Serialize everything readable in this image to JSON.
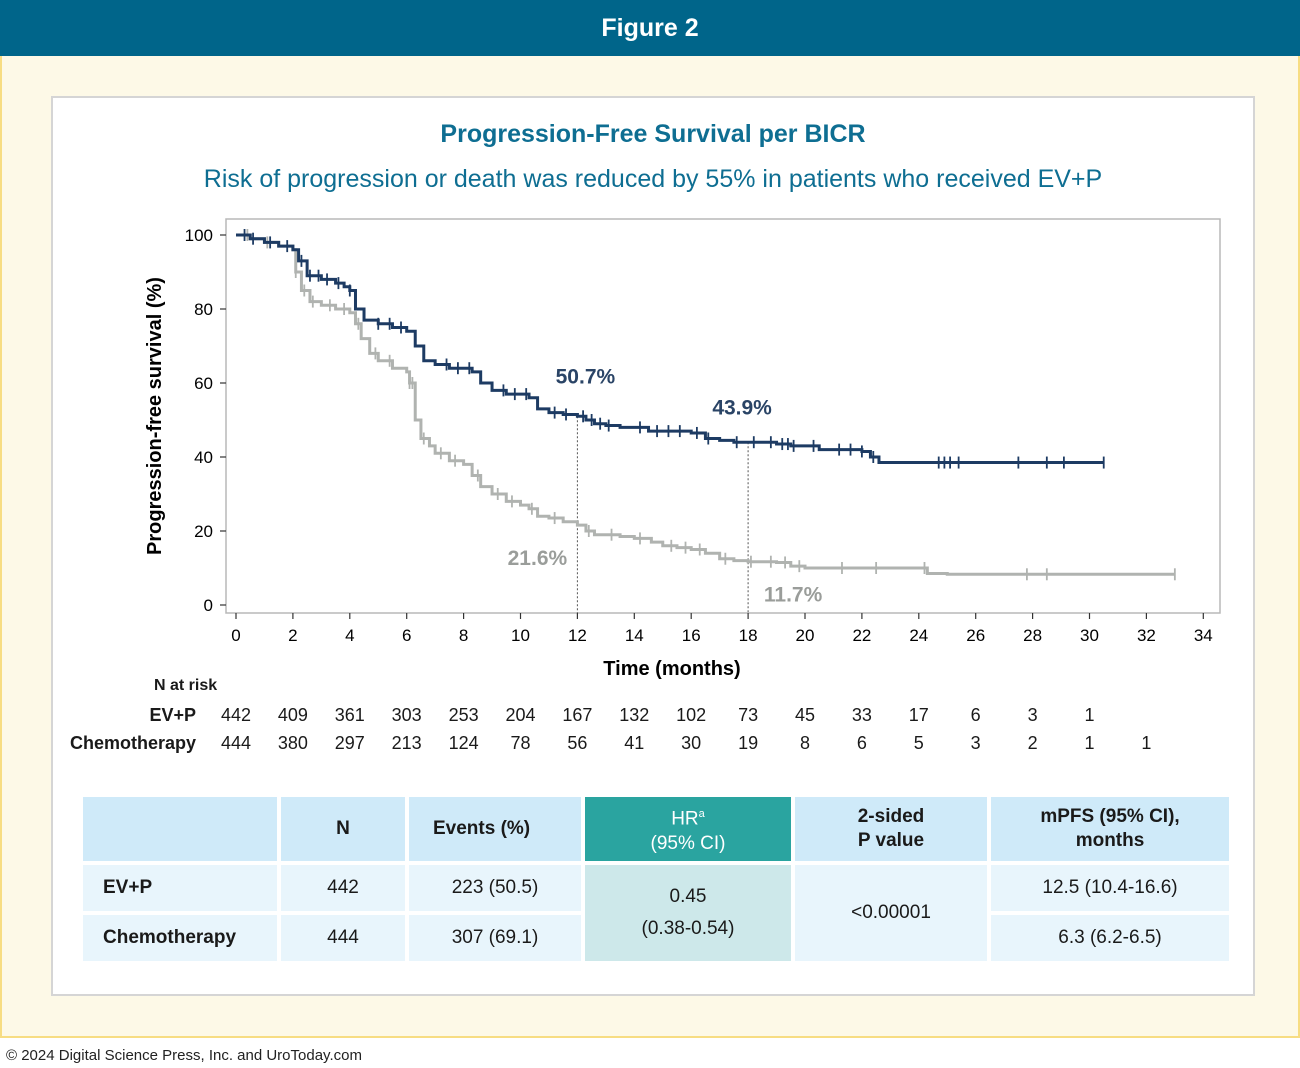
{
  "header": {
    "title": "Figure 2"
  },
  "chart_header": {
    "title": "Progression-Free Survival per BICR",
    "subtitle": "Risk of progression or death was reduced by 55% in patients who received EV+P"
  },
  "chart_data": {
    "type": "line",
    "xlabel": "Time (months)",
    "ylabel": "Progression-free survival (%)",
    "xlim": [
      0,
      34
    ],
    "ylim": [
      0,
      100
    ],
    "xticks": [
      0,
      2,
      4,
      6,
      8,
      10,
      12,
      14,
      16,
      18,
      20,
      22,
      24,
      26,
      28,
      30,
      32,
      34
    ],
    "yticks": [
      0,
      20,
      40,
      60,
      80,
      100
    ],
    "series": [
      {
        "name": "EV+P",
        "color": "#1d3b63",
        "x": [
          0,
          0.5,
          1.0,
          1.5,
          2.0,
          2.2,
          2.5,
          3.0,
          3.5,
          3.8,
          4.0,
          4.2,
          4.5,
          5.0,
          5.5,
          6.0,
          6.3,
          6.6,
          7.0,
          7.5,
          8.0,
          8.3,
          8.6,
          9.0,
          9.5,
          10.0,
          10.3,
          10.6,
          11.0,
          11.5,
          12.0,
          12.3,
          12.6,
          13.0,
          13.5,
          14.0,
          14.5,
          15.0,
          15.5,
          16.0,
          16.5,
          17.0,
          17.5,
          18.0,
          18.5,
          19.0,
          19.5,
          20.0,
          20.5,
          21.0,
          21.5,
          22.0,
          22.3,
          22.6,
          23.0,
          24.0,
          25.0,
          26.0,
          27.0,
          28.0,
          29.0,
          30.0,
          30.5
        ],
        "y": [
          100,
          99,
          98,
          97,
          96,
          93,
          89,
          88,
          87,
          86,
          85,
          80,
          77,
          76,
          75,
          74,
          70,
          66,
          65,
          64,
          64,
          63,
          60,
          58,
          57,
          57,
          56,
          53,
          52,
          51.5,
          51,
          50,
          49,
          48.5,
          48,
          48,
          47,
          47,
          47,
          46.5,
          45,
          44.5,
          44,
          44,
          44,
          43.5,
          43,
          43,
          42,
          42,
          42,
          41.5,
          40,
          38.5,
          38.5,
          38.5,
          38.5,
          38.5,
          38.5,
          38.5,
          38.5,
          38.5,
          38.5
        ],
        "censor_x": [
          0.3,
          0.6,
          1.2,
          1.8,
          2.3,
          2.6,
          2.9,
          3.2,
          3.6,
          4.0,
          5.0,
          5.4,
          5.8,
          7.4,
          7.8,
          8.2,
          9.4,
          9.8,
          10.2,
          11.2,
          11.6,
          12.2,
          12.5,
          12.8,
          13.1,
          14.2,
          14.8,
          15.2,
          15.6,
          16.2,
          16.6,
          17.6,
          18.2,
          18.8,
          19.2,
          19.4,
          19.6,
          20.3,
          21.2,
          21.6,
          22.0,
          22.4,
          24.7,
          24.9,
          25.1,
          25.4,
          27.5,
          28.5,
          29.1,
          30.5
        ],
        "annotations": [
          {
            "x": 12,
            "y": 50.7,
            "text": "50.7%"
          },
          {
            "x": 18,
            "y": 43.9,
            "text": "43.9%"
          }
        ]
      },
      {
        "name": "Chemotherapy",
        "color": "#b0b3b0",
        "x": [
          0,
          0.5,
          1.0,
          1.5,
          2.0,
          2.1,
          2.3,
          2.6,
          3.0,
          3.5,
          4.0,
          4.2,
          4.4,
          4.7,
          5.0,
          5.5,
          6.0,
          6.1,
          6.3,
          6.5,
          6.8,
          7.0,
          7.5,
          8.0,
          8.3,
          8.6,
          9.0,
          9.5,
          10.0,
          10.3,
          10.6,
          11.0,
          11.5,
          12.0,
          12.3,
          12.6,
          13.0,
          13.5,
          14.0,
          14.3,
          14.6,
          15.0,
          15.5,
          16.0,
          16.5,
          17.0,
          17.5,
          18.0,
          18.5,
          19.0,
          19.5,
          20.0,
          21.0,
          22.0,
          23.0,
          24.0,
          24.3,
          25.0,
          26.0,
          27.0,
          28.0,
          29.0,
          30.0,
          31.0,
          32.0,
          33.0
        ],
        "y": [
          100,
          99,
          98,
          97,
          96,
          90,
          85,
          82,
          81,
          80,
          79,
          76,
          72,
          68,
          66,
          64,
          63,
          60,
          50,
          45,
          43,
          41,
          39,
          38,
          35,
          32,
          30,
          28,
          27,
          26,
          24,
          23.5,
          22.5,
          21.6,
          20,
          19,
          19,
          18.5,
          18,
          18,
          17,
          16,
          15.5,
          15,
          14,
          12.5,
          12,
          11.7,
          11.7,
          11.5,
          10.5,
          10,
          10,
          10,
          10,
          10,
          8.5,
          8.3,
          8.3,
          8.3,
          8.3,
          8.3,
          8.3,
          8.3,
          8.3,
          8.3
        ],
        "censor_x": [
          0.4,
          1.1,
          2.1,
          2.4,
          2.7,
          3.3,
          3.8,
          4.3,
          4.9,
          5.4,
          6.1,
          6.2,
          6.6,
          7.2,
          7.7,
          8.5,
          9.2,
          9.7,
          10.4,
          11.2,
          12.4,
          13.2,
          14.2,
          15.3,
          15.8,
          16.3,
          17.2,
          18.1,
          18.8,
          19.3,
          19.8,
          21.3,
          22.5,
          24.2,
          27.8,
          28.5,
          33.0
        ],
        "annotations": [
          {
            "x": 12,
            "y": 21.6,
            "text": "21.6%"
          },
          {
            "x": 18,
            "y": 11.7,
            "text": "11.7%"
          }
        ]
      }
    ],
    "reference_lines_x": [
      12,
      18
    ]
  },
  "risk_table": {
    "header": "N at risk",
    "times": [
      0,
      2,
      4,
      6,
      8,
      10,
      12,
      14,
      16,
      18,
      20,
      22,
      24,
      26,
      28,
      30,
      32
    ],
    "rows": [
      {
        "label": "EV+P",
        "values": [
          "442",
          "409",
          "361",
          "303",
          "253",
          "204",
          "167",
          "132",
          "102",
          "73",
          "45",
          "33",
          "17",
          "6",
          "3",
          "1",
          ""
        ]
      },
      {
        "label": "Chemotherapy",
        "values": [
          "444",
          "380",
          "297",
          "213",
          "124",
          "78",
          "56",
          "41",
          "30",
          "19",
          "8",
          "6",
          "5",
          "3",
          "2",
          "1",
          "1"
        ]
      }
    ]
  },
  "summary_table": {
    "headers": {
      "n": "N",
      "events": "Events (%)",
      "hr": "HR",
      "hr_sup": "a",
      "hr_ci": "(95% CI)",
      "p_line1": "2-sided",
      "p_line2": "P value",
      "mpfs_line1": "mPFS (95% CI),",
      "mpfs_line2": "months"
    },
    "rows": [
      {
        "label": "EV+P",
        "n": "442",
        "events": "223 (50.5)",
        "mpfs": "12.5 (10.4-16.6)"
      },
      {
        "label": "Chemotherapy",
        "n": "444",
        "events": "307 (69.1)",
        "mpfs": "6.3 (6.2-6.5)"
      }
    ],
    "hr_value": "0.45",
    "hr_ci_value": "(0.38-0.54)",
    "p_value": "<0.00001"
  },
  "footer": {
    "copyright": "© 2024 Digital Science Press, Inc. and UroToday.com"
  }
}
